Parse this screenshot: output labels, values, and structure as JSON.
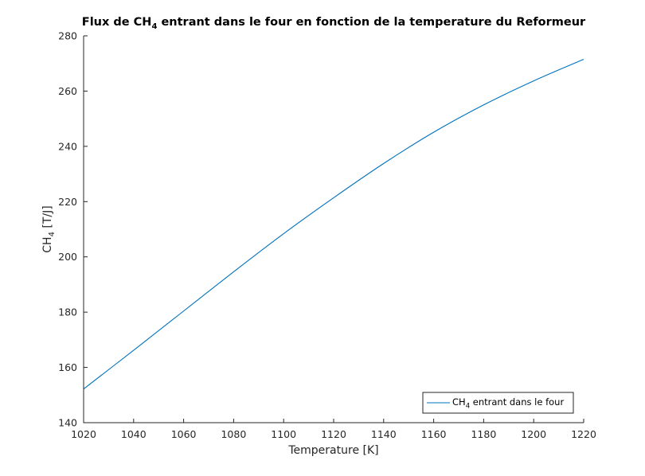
{
  "chart_data": {
    "type": "line",
    "title": {
      "prefix": "Flux de CH",
      "subscript": "4",
      "suffix": " entrant dans le four en fonction de la temperature du Reformeur"
    },
    "xlabel": "Temperature [K]",
    "ylabel": {
      "prefix": "CH",
      "subscript": "4",
      "suffix": "  [T/J]"
    },
    "xlim": [
      1020,
      1220
    ],
    "ylim": [
      140,
      280
    ],
    "xticks": [
      1020,
      1040,
      1060,
      1080,
      1100,
      1120,
      1140,
      1160,
      1180,
      1200,
      1220
    ],
    "yticks": [
      140,
      160,
      180,
      200,
      220,
      240,
      260,
      280
    ],
    "grid": false,
    "legend_position": "bottom-right",
    "series": [
      {
        "name": {
          "prefix": "CH",
          "subscript": "4",
          "suffix": " entrant dans le four"
        },
        "color": "#0072bd",
        "x": [
          1020,
          1040,
          1060,
          1080,
          1100,
          1120,
          1140,
          1160,
          1180,
          1200,
          1220
        ],
        "y": [
          152.2,
          166.2,
          180.4,
          194.6,
          208.4,
          221.4,
          233.8,
          245.1,
          255.0,
          263.7,
          271.5
        ]
      }
    ]
  }
}
